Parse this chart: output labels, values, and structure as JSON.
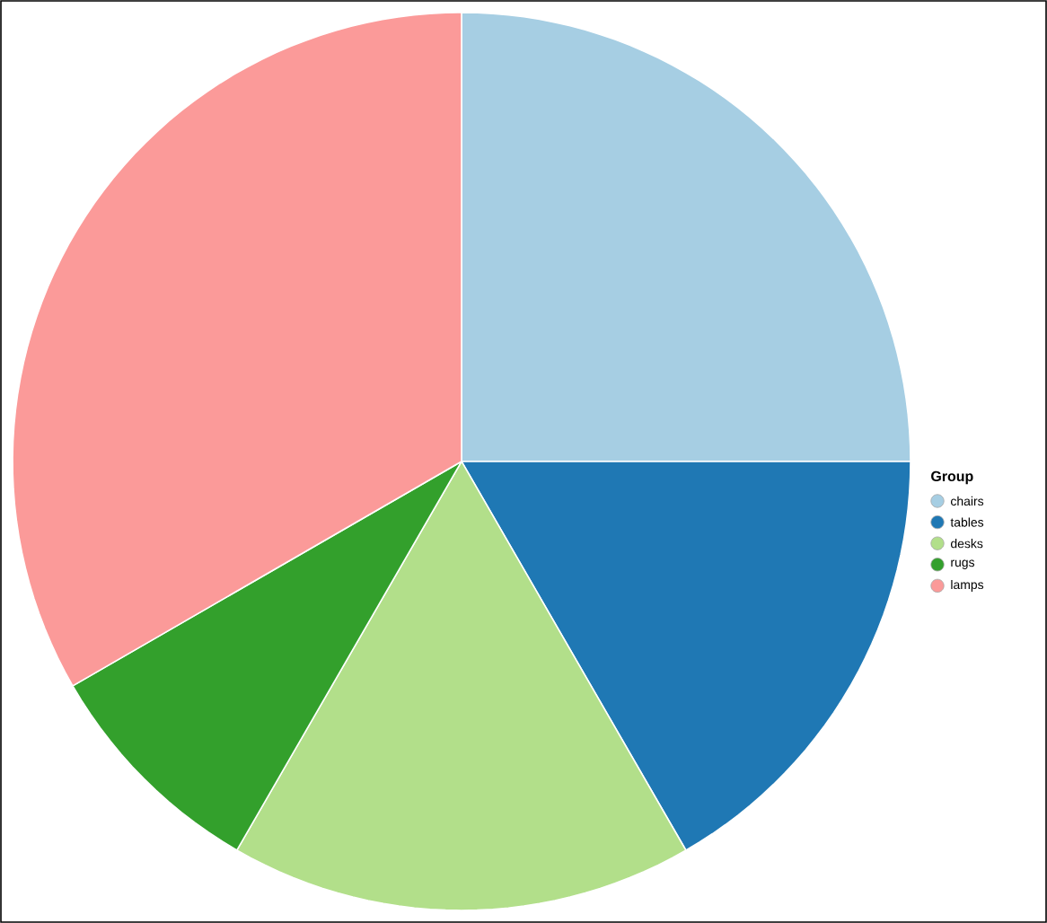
{
  "chart_data": {
    "type": "pie",
    "categories": [
      "chairs",
      "tables",
      "desks",
      "rugs",
      "lamps"
    ],
    "values": [
      25,
      16.67,
      16.67,
      8.33,
      33.33
    ],
    "colors": [
      "#a6cee3",
      "#1f78b4",
      "#b2df8a",
      "#33a02c",
      "#fb9a99"
    ],
    "legend_title": "Group",
    "legend": "right"
  }
}
